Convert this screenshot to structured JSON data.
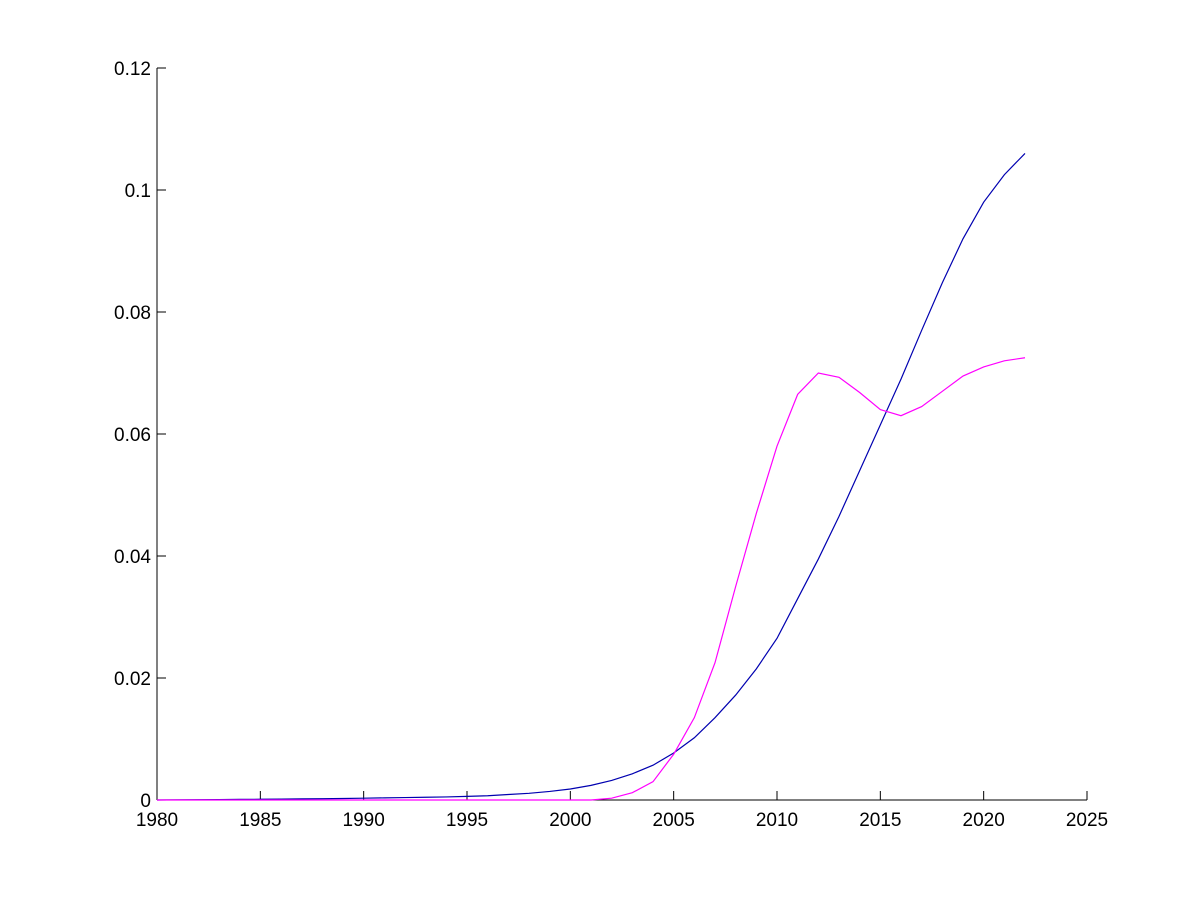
{
  "chart_data": {
    "type": "line",
    "x": [
      1980,
      1981,
      1982,
      1983,
      1984,
      1985,
      1986,
      1987,
      1988,
      1989,
      1990,
      1991,
      1992,
      1993,
      1994,
      1995,
      1996,
      1997,
      1998,
      1999,
      2000,
      2001,
      2002,
      2003,
      2004,
      2005,
      2006,
      2007,
      2008,
      2009,
      2010,
      2011,
      2012,
      2013,
      2014,
      2015,
      2016,
      2017,
      2018,
      2019,
      2020,
      2021,
      2022
    ],
    "series": [
      {
        "color": "#0000b0",
        "values": [
          0,
          3e-05,
          5e-05,
          7e-05,
          0.0001,
          0.00012,
          0.00015,
          0.00018,
          0.0002,
          0.00025,
          0.0003,
          0.00035,
          0.0004,
          0.00045,
          0.0005,
          0.0006,
          0.0007,
          0.0009,
          0.0011,
          0.0014,
          0.0018,
          0.0024,
          0.0032,
          0.0043,
          0.0057,
          0.0077,
          0.0102,
          0.0135,
          0.0172,
          0.0215,
          0.0265,
          0.033,
          0.0395,
          0.0465,
          0.054,
          0.0615,
          0.069,
          0.077,
          0.0848,
          0.092,
          0.098,
          0.1025,
          0.106
        ]
      },
      {
        "color": "#ff00ff",
        "values": [
          0,
          0,
          0,
          0,
          0,
          0,
          0,
          0,
          0,
          0,
          0,
          0,
          0,
          0,
          0,
          0,
          0,
          0,
          0,
          0,
          0,
          0,
          0.0003,
          0.0012,
          0.003,
          0.0075,
          0.0135,
          0.0225,
          0.035,
          0.047,
          0.058,
          0.0665,
          0.07,
          0.0693,
          0.0668,
          0.064,
          0.063,
          0.0645,
          0.067,
          0.0695,
          0.071,
          0.072,
          0.0725
        ]
      }
    ],
    "xlim": [
      1980,
      2025
    ],
    "xticks": [
      1980,
      1985,
      1990,
      1995,
      2000,
      2005,
      2010,
      2015,
      2020,
      2025
    ],
    "ylim": [
      0,
      0.12
    ],
    "yticks": [
      0,
      0.02,
      0.04,
      0.06,
      0.08,
      0.1,
      0.12
    ]
  }
}
